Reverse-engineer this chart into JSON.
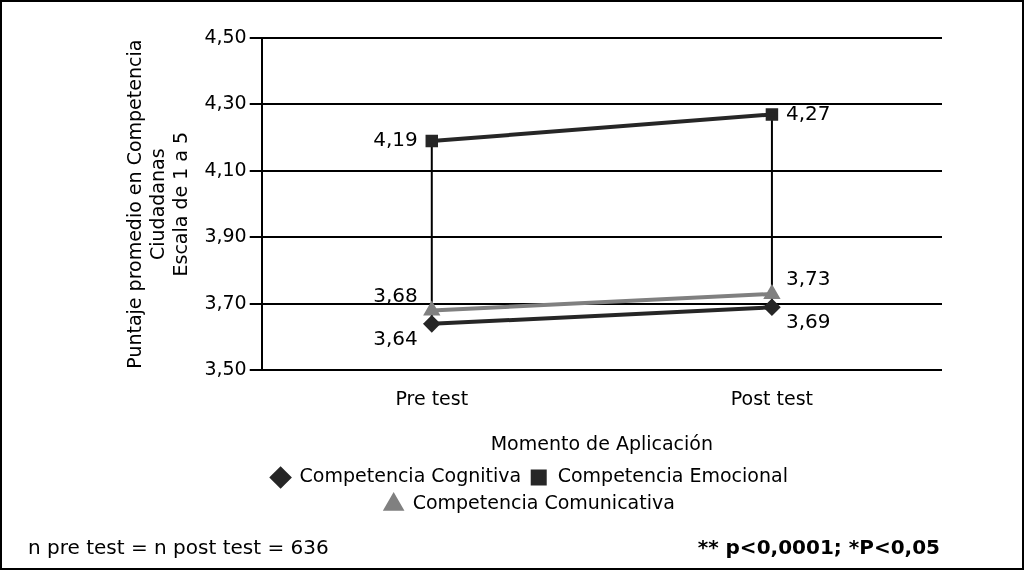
{
  "chart_data": {
    "type": "line",
    "xlabel": "Momento de Aplicación",
    "ylabel": "Puntaje promedio en Competencia\nCiudadanas\nEscala de 1 a 5",
    "categories": [
      "Pre test",
      "Post test"
    ],
    "series": [
      {
        "name": "Competencia Cognitiva",
        "color": "#262626",
        "marker": "diamond",
        "values": [
          3.64,
          3.69
        ],
        "value_labels": [
          "3,64",
          "3,69"
        ]
      },
      {
        "name": "Competencia Emocional",
        "color": "#262626",
        "marker": "square",
        "values": [
          4.19,
          4.27
        ],
        "value_labels": [
          "4,19",
          "4,27"
        ]
      },
      {
        "name": "Competencia Comunicativa",
        "color": "#808080",
        "marker": "triangle",
        "values": [
          3.68,
          3.73
        ],
        "value_labels": [
          "3,68",
          "3,73"
        ]
      }
    ],
    "ylim": [
      3.5,
      4.5
    ],
    "yticks": [
      {
        "value": 3.5,
        "label": "3,50"
      },
      {
        "value": 3.7,
        "label": "3,70"
      },
      {
        "value": 3.9,
        "label": "3,90"
      },
      {
        "value": 4.1,
        "label": "4,10"
      },
      {
        "value": 4.3,
        "label": "4,30"
      },
      {
        "value": 4.5,
        "label": "4,50"
      }
    ],
    "grid": "y",
    "legend": "bottom",
    "annotations": [
      "n pre test = n post test = 636",
      "** p<0,0001; *P<0,05"
    ]
  }
}
